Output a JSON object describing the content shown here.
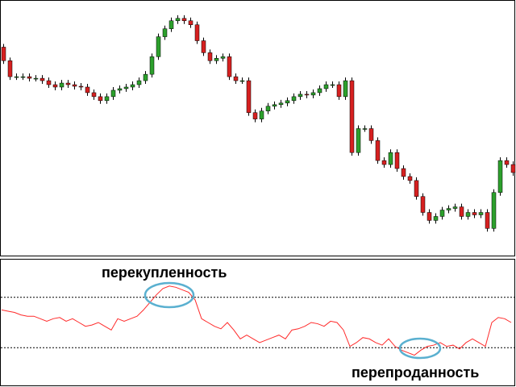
{
  "chart_data": [
    {
      "type": "candlestick",
      "ylim": [
        0,
        320
      ],
      "up_color": "#2ca02c",
      "down_color": "#d62020",
      "wick_color": "#000000",
      "open": [
        262,
        245,
        225,
        225,
        225,
        223,
        223,
        220,
        215,
        212,
        217,
        215,
        213,
        212,
        205,
        200,
        195,
        200,
        208,
        210,
        212,
        215,
        220,
        228,
        250,
        275,
        285,
        295,
        298,
        295,
        290,
        270,
        255,
        245,
        248,
        250,
        225,
        220,
        220,
        180,
        172,
        182,
        188,
        190,
        192,
        195,
        200,
        203,
        202,
        205,
        210,
        215,
        215,
        200,
        220,
        130,
        160,
        160,
        145,
        120,
        115,
        130,
        110,
        100,
        95,
        75,
        55,
        45,
        50,
        58,
        60,
        62,
        50,
        55,
        52,
        55,
        35,
        80,
        120,
        115
      ],
      "high": [
        266,
        249,
        229,
        229,
        229,
        227,
        227,
        224,
        219,
        221,
        221,
        219,
        217,
        216,
        209,
        204,
        204,
        212,
        214,
        216,
        219,
        224,
        232,
        254,
        279,
        289,
        299,
        302,
        302,
        299,
        294,
        274,
        259,
        252,
        254,
        254,
        229,
        224,
        224,
        184,
        186,
        192,
        194,
        196,
        199,
        204,
        207,
        207,
        209,
        214,
        219,
        219,
        219,
        224,
        224,
        164,
        164,
        164,
        149,
        124,
        134,
        134,
        114,
        104,
        99,
        79,
        59,
        54,
        62,
        64,
        66,
        66,
        59,
        59,
        59,
        59,
        84,
        124,
        124,
        119
      ],
      "low": [
        241,
        221,
        221,
        221,
        219,
        219,
        216,
        211,
        208,
        208,
        211,
        209,
        208,
        201,
        196,
        191,
        191,
        196,
        204,
        206,
        208,
        211,
        216,
        224,
        246,
        271,
        281,
        291,
        291,
        286,
        266,
        251,
        241,
        241,
        244,
        221,
        216,
        216,
        176,
        168,
        168,
        178,
        184,
        186,
        188,
        191,
        196,
        198,
        198,
        201,
        206,
        211,
        196,
        196,
        126,
        126,
        156,
        141,
        116,
        111,
        111,
        106,
        96,
        91,
        71,
        51,
        41,
        41,
        46,
        54,
        56,
        46,
        46,
        48,
        48,
        31,
        31,
        76,
        111,
        101
      ],
      "close": [
        245,
        225,
        225,
        225,
        223,
        223,
        220,
        215,
        212,
        217,
        215,
        213,
        212,
        205,
        200,
        195,
        200,
        208,
        210,
        212,
        215,
        220,
        228,
        250,
        275,
        285,
        295,
        298,
        295,
        290,
        270,
        255,
        245,
        248,
        250,
        225,
        220,
        220,
        180,
        172,
        182,
        188,
        190,
        192,
        195,
        200,
        203,
        202,
        205,
        210,
        215,
        215,
        200,
        220,
        130,
        160,
        160,
        145,
        120,
        115,
        130,
        110,
        100,
        95,
        75,
        55,
        45,
        50,
        58,
        60,
        62,
        50,
        55,
        52,
        55,
        35,
        80,
        120,
        115,
        105
      ]
    },
    {
      "type": "line",
      "ylim": [
        0,
        100
      ],
      "color": "#ff2a2a",
      "levels": [
        70,
        30
      ],
      "annotations": [
        "перекупленность",
        "перепроданность"
      ],
      "values": [
        60,
        59,
        58,
        56,
        55,
        55,
        53,
        51,
        53,
        54,
        51,
        53,
        50,
        47,
        48,
        50,
        47,
        44,
        53,
        51,
        53,
        55,
        60,
        66,
        72,
        77,
        79,
        78,
        76,
        74,
        68,
        53,
        50,
        47,
        45,
        50,
        44,
        37,
        40,
        37,
        34,
        36,
        38,
        40,
        37,
        44,
        45,
        47,
        50,
        49,
        47,
        51,
        50,
        44,
        31,
        34,
        38,
        37,
        34,
        32,
        37,
        31,
        28,
        26,
        24,
        28,
        31,
        32,
        34,
        31,
        32,
        29,
        34,
        37,
        34,
        31,
        50,
        54,
        53,
        50
      ]
    }
  ]
}
